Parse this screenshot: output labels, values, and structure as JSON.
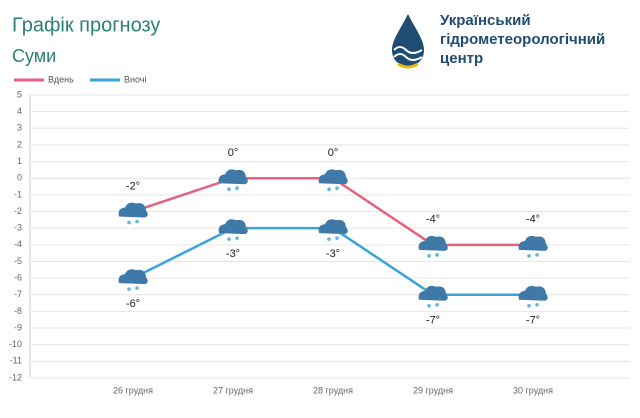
{
  "header": {
    "title": "Графік прогнозу",
    "city": "Суми",
    "org": [
      "Український",
      "гідрометеорологічний",
      "центр"
    ]
  },
  "chart_data": {
    "type": "line",
    "categories": [
      "26 грудня",
      "27 грудня",
      "28 грудня",
      "29 грудня",
      "30 грудня"
    ],
    "series": [
      {
        "name": "Вдень",
        "color": "#e8607e",
        "values": [
          -2,
          0,
          0,
          -4,
          -4
        ],
        "value_labels": [
          "-2°",
          "0°",
          "0°",
          "-4°",
          "-4°"
        ]
      },
      {
        "name": "Вночі",
        "color": "#3aa3d8",
        "values": [
          -6,
          -3,
          -3,
          -7,
          -7
        ],
        "value_labels": [
          "-6°",
          "-3°",
          "-3°",
          "-7°",
          "-7°"
        ]
      }
    ],
    "ylim": [
      -12,
      5
    ],
    "yticks": [
      5,
      4,
      3,
      2,
      1,
      0,
      -1,
      -2,
      -3,
      -4,
      -5,
      -6,
      -7,
      -8,
      -9,
      -10,
      -11,
      -12
    ],
    "grid": true
  }
}
